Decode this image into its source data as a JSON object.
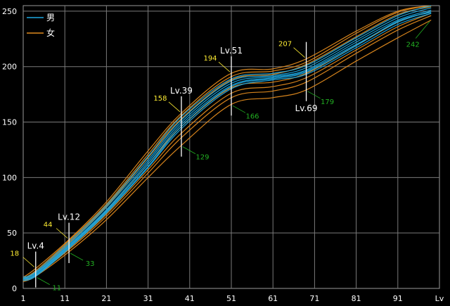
{
  "chart_data": {
    "type": "line",
    "xlim": [
      1,
      101
    ],
    "ylim": [
      0,
      255
    ],
    "x_ticks": [
      "1",
      "11",
      "21",
      "31",
      "41",
      "51",
      "61",
      "71",
      "81",
      "91",
      "Lv"
    ],
    "y_ticks": [
      "0",
      "50",
      "100",
      "150",
      "200",
      "250"
    ],
    "grid": true,
    "legend": {
      "position": "top-left",
      "entries": [
        {
          "name": "男",
          "color": "#1ea8e0"
        },
        {
          "name": "女",
          "color": "#e08a1e"
        }
      ]
    },
    "annotations": [
      {
        "level_label": "Lv.4",
        "x": 4,
        "high": 18,
        "low": 11
      },
      {
        "level_label": "Lv.12",
        "x": 12,
        "high": 44,
        "low": 33
      },
      {
        "level_label": "Lv.39",
        "x": 39,
        "high": 158,
        "low": 129
      },
      {
        "level_label": "Lv.51",
        "x": 51,
        "high": 194,
        "low": 166
      },
      {
        "level_label": "Lv.69",
        "x": 69,
        "high": 207,
        "low": 179
      }
    ],
    "series": [
      {
        "group": "男",
        "color": "#1ea8e0",
        "points": [
          [
            1,
            8
          ],
          [
            4,
            12
          ],
          [
            12,
            38
          ],
          [
            21,
            70
          ],
          [
            31,
            112
          ],
          [
            39,
            148
          ],
          [
            51,
            183
          ],
          [
            61,
            190
          ],
          [
            69,
            196
          ],
          [
            81,
            220
          ],
          [
            91,
            240
          ],
          [
            99,
            250
          ]
        ]
      },
      {
        "group": "男",
        "color": "#1ea8e0",
        "points": [
          [
            1,
            9
          ],
          [
            4,
            14
          ],
          [
            12,
            40
          ],
          [
            21,
            73
          ],
          [
            31,
            116
          ],
          [
            39,
            152
          ],
          [
            51,
            187
          ],
          [
            61,
            192
          ],
          [
            69,
            199
          ],
          [
            81,
            224
          ],
          [
            91,
            244
          ],
          [
            99,
            253
          ]
        ]
      },
      {
        "group": "男",
        "color": "#1ea8e0",
        "points": [
          [
            1,
            7
          ],
          [
            4,
            11
          ],
          [
            12,
            36
          ],
          [
            21,
            68
          ],
          [
            31,
            109
          ],
          [
            39,
            144
          ],
          [
            51,
            180
          ],
          [
            61,
            188
          ],
          [
            69,
            193
          ],
          [
            81,
            217
          ],
          [
            91,
            238
          ],
          [
            99,
            248
          ]
        ]
      },
      {
        "group": "男",
        "color": "#1ea8e0",
        "points": [
          [
            1,
            10
          ],
          [
            4,
            15
          ],
          [
            12,
            42
          ],
          [
            21,
            75
          ],
          [
            31,
            119
          ],
          [
            39,
            155
          ],
          [
            51,
            189
          ],
          [
            61,
            194
          ],
          [
            69,
            201
          ],
          [
            81,
            226
          ],
          [
            91,
            246
          ],
          [
            99,
            255
          ]
        ]
      },
      {
        "group": "男",
        "color": "#1ea8e0",
        "points": [
          [
            1,
            8
          ],
          [
            4,
            13
          ],
          [
            12,
            39
          ],
          [
            21,
            71
          ],
          [
            31,
            114
          ],
          [
            39,
            150
          ],
          [
            51,
            185
          ],
          [
            61,
            191
          ],
          [
            69,
            197
          ],
          [
            81,
            222
          ],
          [
            91,
            242
          ],
          [
            99,
            251
          ]
        ]
      },
      {
        "group": "男",
        "color": "#1ea8e0",
        "points": [
          [
            1,
            9
          ],
          [
            4,
            12
          ],
          [
            12,
            37
          ],
          [
            21,
            69
          ],
          [
            31,
            110
          ],
          [
            39,
            146
          ],
          [
            51,
            182
          ],
          [
            61,
            189
          ],
          [
            69,
            195
          ],
          [
            81,
            219
          ],
          [
            91,
            241
          ],
          [
            99,
            249
          ]
        ]
      },
      {
        "group": "女",
        "color": "#e08a1e",
        "points": [
          [
            1,
            10
          ],
          [
            4,
            18
          ],
          [
            12,
            44
          ],
          [
            21,
            78
          ],
          [
            31,
            124
          ],
          [
            39,
            158
          ],
          [
            51,
            194
          ],
          [
            61,
            198
          ],
          [
            69,
            207
          ],
          [
            81,
            232
          ],
          [
            91,
            250
          ],
          [
            99,
            255
          ]
        ]
      },
      {
        "group": "女",
        "color": "#e08a1e",
        "points": [
          [
            1,
            6
          ],
          [
            4,
            11
          ],
          [
            12,
            33
          ],
          [
            21,
            62
          ],
          [
            31,
            100
          ],
          [
            39,
            129
          ],
          [
            51,
            166
          ],
          [
            61,
            172
          ],
          [
            69,
            179
          ],
          [
            81,
            205
          ],
          [
            91,
            226
          ],
          [
            99,
            242
          ]
        ]
      },
      {
        "group": "女",
        "color": "#e08a1e",
        "points": [
          [
            1,
            9
          ],
          [
            4,
            15
          ],
          [
            12,
            41
          ],
          [
            21,
            74
          ],
          [
            31,
            118
          ],
          [
            39,
            153
          ],
          [
            51,
            188
          ],
          [
            61,
            193
          ],
          [
            69,
            202
          ],
          [
            81,
            227
          ],
          [
            91,
            247
          ],
          [
            99,
            254
          ]
        ]
      },
      {
        "group": "女",
        "color": "#e08a1e",
        "points": [
          [
            1,
            7
          ],
          [
            4,
            12
          ],
          [
            12,
            35
          ],
          [
            21,
            65
          ],
          [
            31,
            104
          ],
          [
            39,
            136
          ],
          [
            51,
            172
          ],
          [
            61,
            178
          ],
          [
            69,
            186
          ],
          [
            81,
            212
          ],
          [
            91,
            233
          ],
          [
            99,
            246
          ]
        ]
      },
      {
        "group": "女",
        "color": "#e08a1e",
        "points": [
          [
            1,
            8
          ],
          [
            4,
            14
          ],
          [
            12,
            38
          ],
          [
            21,
            70
          ],
          [
            31,
            112
          ],
          [
            39,
            146
          ],
          [
            51,
            181
          ],
          [
            61,
            186
          ],
          [
            69,
            194
          ],
          [
            81,
            219
          ],
          [
            91,
            240
          ],
          [
            99,
            250
          ]
        ]
      },
      {
        "group": "女",
        "color": "#e08a1e",
        "points": [
          [
            1,
            9
          ],
          [
            4,
            16
          ],
          [
            12,
            43
          ],
          [
            21,
            76
          ],
          [
            31,
            121
          ],
          [
            39,
            156
          ],
          [
            51,
            191
          ],
          [
            61,
            196
          ],
          [
            69,
            204
          ],
          [
            81,
            230
          ],
          [
            91,
            249
          ],
          [
            99,
            255
          ]
        ]
      },
      {
        "group": "女",
        "color": "#e08a1e",
        "points": [
          [
            1,
            7
          ],
          [
            4,
            12
          ],
          [
            12,
            36
          ],
          [
            21,
            67
          ],
          [
            31,
            107
          ],
          [
            39,
            140
          ],
          [
            51,
            176
          ],
          [
            61,
            182
          ],
          [
            69,
            190
          ],
          [
            81,
            215
          ],
          [
            91,
            236
          ],
          [
            99,
            248
          ]
        ]
      }
    ]
  }
}
